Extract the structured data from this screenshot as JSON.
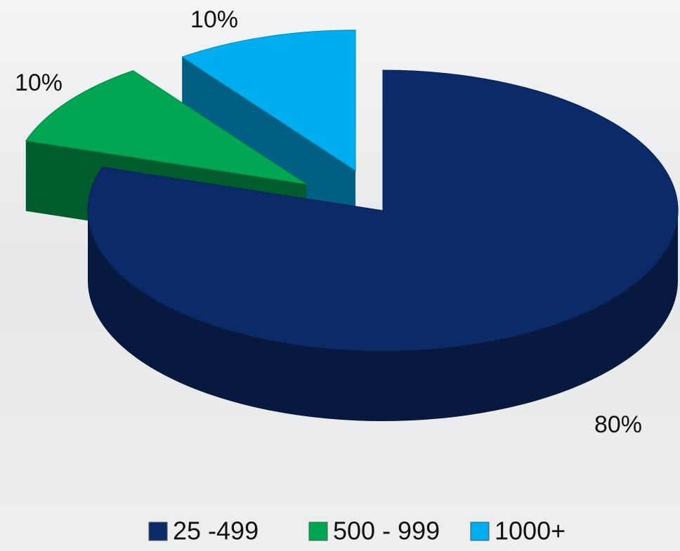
{
  "chart_data": {
    "type": "pie3d",
    "categories": [
      "25 -499",
      "500 - 999",
      "1000+"
    ],
    "values": [
      80,
      10,
      10
    ],
    "value_labels": [
      "80%",
      "10%",
      "10%"
    ],
    "colors": [
      "#0b2a68",
      "#00a651",
      "#00aeef"
    ],
    "legend": "bottom"
  }
}
